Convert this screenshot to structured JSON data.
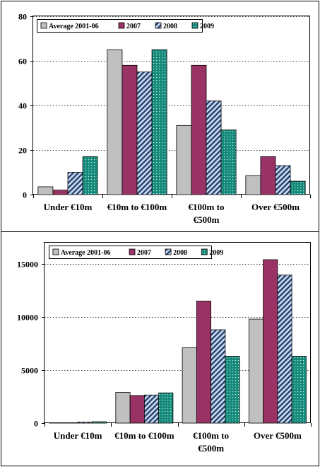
{
  "colors": {
    "avg": "#c0c0c0",
    "y2007": "#993366",
    "y2008_stripe": "#1f3864",
    "y2008_bg": "#c6d9f1",
    "y2009": "#138a7a"
  },
  "chart_data": [
    {
      "type": "bar",
      "categories": [
        [
          "Under €10m"
        ],
        [
          "€10m to €100m"
        ],
        [
          "€100m to",
          "€500m"
        ],
        [
          "Over €500m"
        ]
      ],
      "series": [
        {
          "name": "Average 2001-06",
          "values": [
            3.5,
            65,
            31,
            8.5
          ]
        },
        {
          "name": "2007",
          "values": [
            2,
            58,
            58,
            17
          ]
        },
        {
          "name": "2008",
          "values": [
            10,
            55,
            42,
            13
          ]
        },
        {
          "name": "2009",
          "values": [
            17,
            65,
            29,
            6
          ]
        }
      ],
      "yticks": [
        "0",
        "20",
        "40",
        "60",
        "80"
      ],
      "ylim": [
        0,
        80
      ],
      "grid": true,
      "legend": "top"
    },
    {
      "type": "bar",
      "categories": [
        [
          "Under €10m"
        ],
        [
          "€10m to €100m"
        ],
        [
          "€100m to",
          "€500m"
        ],
        [
          "Over €500m"
        ]
      ],
      "series": [
        {
          "name": "Average 2001-06",
          "values": [
            30,
            2900,
            7100,
            9800
          ]
        },
        {
          "name": "2007",
          "values": [
            40,
            2600,
            11500,
            15400
          ]
        },
        {
          "name": "2008",
          "values": [
            100,
            2650,
            8800,
            13950
          ]
        },
        {
          "name": "2009",
          "values": [
            130,
            2850,
            6300,
            6300
          ]
        }
      ],
      "yticks": [
        "0",
        "5000",
        "10000",
        "15000"
      ],
      "ylim": [
        0,
        17000
      ],
      "grid": true,
      "legend": "top"
    }
  ]
}
